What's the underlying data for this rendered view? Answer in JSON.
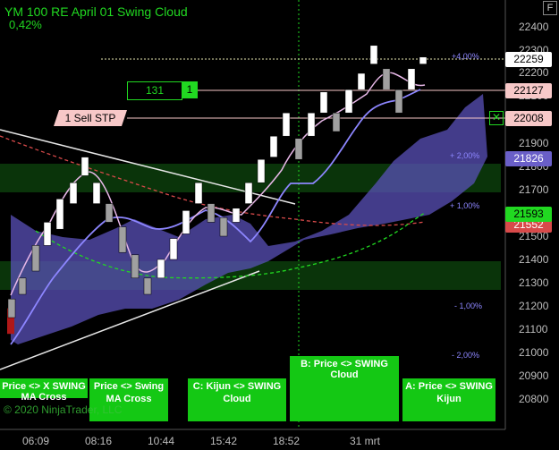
{
  "header": {
    "title": "YM 100 RE April 01 Swing Cloud",
    "change_pct": "0,42%",
    "float_button": "F"
  },
  "y_axis": {
    "ticks": [
      "22400",
      "22300",
      "22200",
      "22100",
      "22000",
      "21900",
      "21800",
      "21700",
      "21600",
      "21500",
      "21400",
      "21300",
      "21200",
      "21100",
      "21000",
      "20900",
      "20800"
    ]
  },
  "x_axis": {
    "ticks": [
      "06:09",
      "08:16",
      "10:44",
      "15:42",
      "18:52",
      "31 mrt"
    ]
  },
  "pct_levels": [
    "+4,00%",
    "+ 2,00%",
    "+ 1,00%",
    "- 1,00%",
    "- 2,00%"
  ],
  "price_tags": {
    "last": "22259",
    "entry": "22127",
    "stop": "22008",
    "cloud_top": "21826",
    "kijun": "21593",
    "cloud_low": "21552"
  },
  "order": {
    "quantity": "131",
    "id": "1",
    "stop_label": "1  Sell STP"
  },
  "alerts": [
    {
      "title": "Price <> X SWING",
      "sub": "MA Cross"
    },
    {
      "title": "Price <> Swing",
      "sub": "MA Cross"
    },
    {
      "title": "C: Kijun <> SWING",
      "sub": "Cloud"
    },
    {
      "title": "B: Price <> SWING",
      "sub": "Cloud"
    },
    {
      "title": "A: Price <> SWING",
      "sub": "Kijun"
    }
  ],
  "copyright": "© 2020 NinjaTrader, LLC",
  "colors": {
    "up": "#ffffff",
    "down": "#a0a0a0",
    "cloud": "#6a5fc8",
    "kijun": "#21d821",
    "fast_ma": "#e8b8e8",
    "slow_ma": "#8d86ff",
    "red_ma": "#d84a4a"
  },
  "chart_data": {
    "type": "candlestick",
    "ylim": [
      20750,
      22450
    ],
    "candles": [
      {
        "x": 13,
        "o": 21150,
        "c": 21230,
        "dir": "down"
      },
      {
        "x": 25,
        "o": 21250,
        "c": 21320,
        "dir": "down"
      },
      {
        "x": 40,
        "o": 21350,
        "c": 21460,
        "dir": "down"
      },
      {
        "x": 53,
        "o": 21460,
        "c": 21560,
        "dir": "up"
      },
      {
        "x": 67,
        "o": 21530,
        "c": 21660,
        "dir": "up"
      },
      {
        "x": 82,
        "o": 21640,
        "c": 21730,
        "dir": "up"
      },
      {
        "x": 95,
        "o": 21760,
        "c": 21840,
        "dir": "up"
      },
      {
        "x": 108,
        "o": 21640,
        "c": 21730,
        "dir": "up"
      },
      {
        "x": 122,
        "o": 21560,
        "c": 21640,
        "dir": "down"
      },
      {
        "x": 137,
        "o": 21430,
        "c": 21540,
        "dir": "down"
      },
      {
        "x": 151,
        "o": 21320,
        "c": 21420,
        "dir": "down"
      },
      {
        "x": 165,
        "o": 21250,
        "c": 21320,
        "dir": "down"
      },
      {
        "x": 180,
        "o": 21320,
        "c": 21400,
        "dir": "up"
      },
      {
        "x": 194,
        "o": 21400,
        "c": 21490,
        "dir": "up"
      },
      {
        "x": 208,
        "o": 21510,
        "c": 21610,
        "dir": "up"
      },
      {
        "x": 222,
        "o": 21640,
        "c": 21730,
        "dir": "up"
      },
      {
        "x": 236,
        "o": 21560,
        "c": 21640,
        "dir": "down"
      },
      {
        "x": 250,
        "o": 21500,
        "c": 21580,
        "dir": "down"
      },
      {
        "x": 264,
        "o": 21560,
        "c": 21620,
        "dir": "up"
      },
      {
        "x": 278,
        "o": 21640,
        "c": 21730,
        "dir": "up"
      },
      {
        "x": 292,
        "o": 21730,
        "c": 21830,
        "dir": "up"
      },
      {
        "x": 306,
        "o": 21840,
        "c": 21930,
        "dir": "up"
      },
      {
        "x": 320,
        "o": 21930,
        "c": 22030,
        "dir": "up"
      },
      {
        "x": 334,
        "o": 21830,
        "c": 21920,
        "dir": "down"
      },
      {
        "x": 348,
        "o": 21930,
        "c": 22030,
        "dir": "up"
      },
      {
        "x": 362,
        "o": 22030,
        "c": 22120,
        "dir": "up"
      },
      {
        "x": 376,
        "o": 21950,
        "c": 22030,
        "dir": "down"
      },
      {
        "x": 390,
        "o": 22030,
        "c": 22130,
        "dir": "up"
      },
      {
        "x": 404,
        "o": 22130,
        "c": 22200,
        "dir": "up"
      },
      {
        "x": 418,
        "o": 22240,
        "c": 22320,
        "dir": "up"
      },
      {
        "x": 432,
        "o": 22130,
        "c": 22220,
        "dir": "down"
      },
      {
        "x": 446,
        "o": 22030,
        "c": 22130,
        "dir": "down"
      },
      {
        "x": 460,
        "o": 22130,
        "c": 22220,
        "dir": "up"
      },
      {
        "x": 473,
        "o": 22240,
        "c": 22270,
        "dir": "up"
      }
    ]
  }
}
